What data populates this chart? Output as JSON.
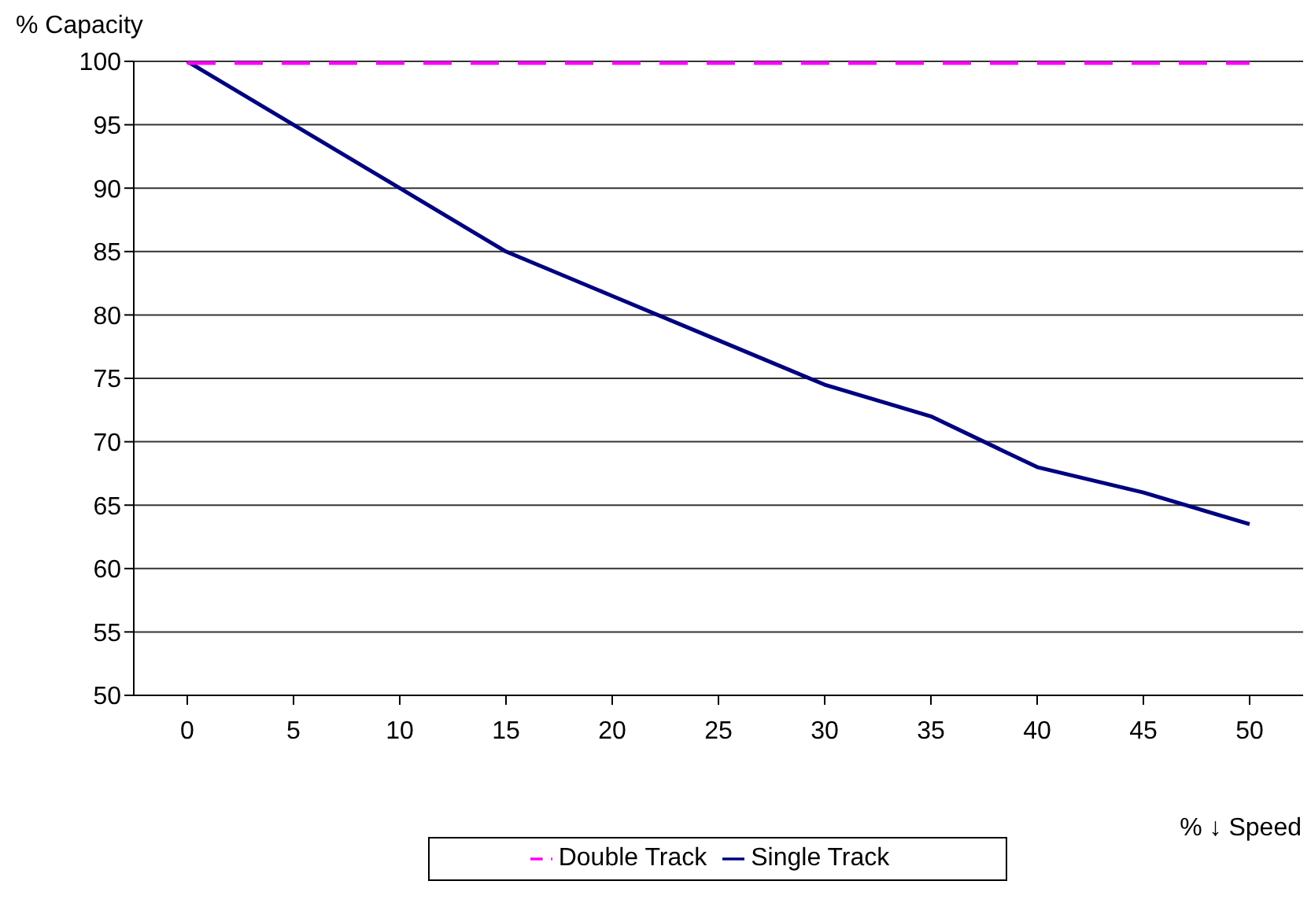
{
  "chart_data": {
    "type": "line",
    "ylabel": "% Capacity",
    "xlabel": "% ↓ Speed",
    "categories": [
      "0",
      "5",
      "10",
      "15",
      "20",
      "25",
      "30",
      "35",
      "40",
      "45",
      "50"
    ],
    "series": [
      {
        "name": "Single Track",
        "color": "#000080",
        "line_style": "solid",
        "values": [
          100,
          95,
          90,
          85,
          81.5,
          78,
          74.5,
          72,
          68,
          66,
          63.5
        ]
      },
      {
        "name": "Double Track",
        "color": "#ff00ff",
        "line_style": "dashed",
        "values": [
          100,
          100,
          100,
          100,
          100,
          100,
          100,
          100,
          100,
          100,
          100
        ]
      }
    ],
    "ylim": [
      50,
      100
    ],
    "yticks": [
      50,
      55,
      60,
      65,
      70,
      75,
      80,
      85,
      90,
      95,
      100
    ],
    "grid": "y",
    "legend": "bottom",
    "marker": "none"
  }
}
